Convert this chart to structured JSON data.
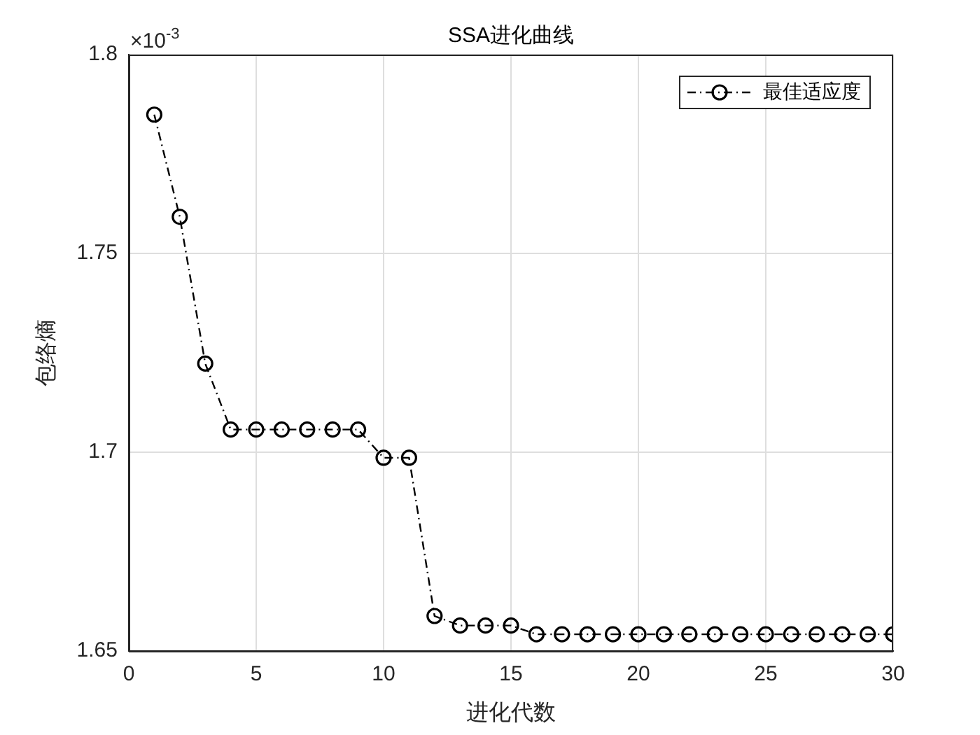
{
  "chart_data": {
    "type": "line",
    "title": "SSA进化曲线",
    "xlabel": "进化代数",
    "ylabel": "包络熵",
    "annotations": [
      "×10$^{-3}$"
    ],
    "x": [
      1,
      2,
      3,
      4,
      5,
      6,
      7,
      8,
      9,
      10,
      11,
      12,
      13,
      14,
      15,
      16,
      17,
      18,
      19,
      20,
      21,
      22,
      23,
      24,
      25,
      26,
      27,
      28,
      29,
      30
    ],
    "series": [
      {
        "name": "最佳适应度",
        "color": "#000000",
        "values": [
          1.7849,
          1.7592,
          1.7223,
          1.7057,
          1.7057,
          1.7057,
          1.7057,
          1.7057,
          1.7057,
          1.6986,
          1.6986,
          1.6588,
          1.6564,
          1.6564,
          1.6564,
          1.6542,
          1.6542,
          1.6542,
          1.6542,
          1.6542,
          1.6542,
          1.6542,
          1.6542,
          1.6542,
          1.6542,
          1.6542,
          1.6542,
          1.6542,
          1.6542,
          1.6542
        ]
      }
    ],
    "xlim": [
      0,
      30
    ],
    "xticks": [
      0,
      5,
      10,
      15,
      20,
      25,
      30
    ],
    "ylim": [
      1.65,
      1.8
    ],
    "yticks": [
      1.65,
      1.7,
      1.75,
      1.8
    ],
    "grid": true,
    "legend": "top right",
    "marker": "circle",
    "line_style": "dashdot"
  }
}
